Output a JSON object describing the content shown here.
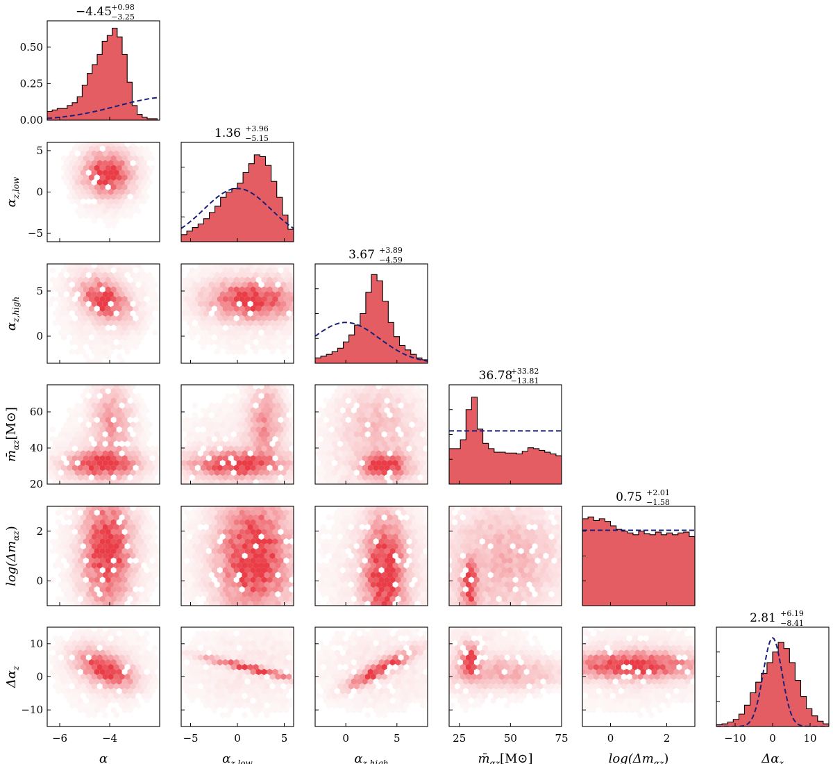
{
  "chart_data": {
    "type": "corner",
    "parameters": [
      {
        "id": "alpha",
        "label": "α",
        "sub": "",
        "range": [
          -6.5,
          -2.0
        ],
        "ticks": [
          -6,
          -4
        ],
        "hist_ticks": [
          0.0,
          0.25,
          0.5
        ],
        "hist_tick_labels": [
          "0.00",
          "0.25",
          "0.50"
        ],
        "hist_ymax": 0.68,
        "title_value": "−4.45",
        "title_plus": "+0.98",
        "title_minus": "−3.25"
      },
      {
        "id": "alpha_z_low",
        "label": "α",
        "sub": "z,low",
        "range": [
          -6.0,
          6.0
        ],
        "ticks": [
          -5,
          0,
          5
        ],
        "title_value": "1.36",
        "title_plus": "+3.96",
        "title_minus": "−5.15"
      },
      {
        "id": "alpha_z_high",
        "label": "α",
        "sub": "z,high",
        "range": [
          -3.0,
          8.0
        ],
        "ticks": [
          0,
          5
        ],
        "title_value": "3.67",
        "title_plus": "+3.89",
        "title_minus": "−4.59"
      },
      {
        "id": "m_alpha_z",
        "label": "m̄",
        "sub": "αz",
        "suffix": "[M⊙]",
        "range": [
          20,
          75
        ],
        "ticks": [
          25,
          50,
          75
        ],
        "y_ticks": [
          20,
          40,
          60
        ],
        "title_value": "36.78",
        "title_plus": "+33.82",
        "title_minus": "−13.81"
      },
      {
        "id": "log_dm_alpha_z",
        "label": "log(Δm",
        "sub": "αz",
        "suffix": ")",
        "range": [
          -1.0,
          3.0
        ],
        "ticks": [
          0,
          2
        ],
        "title_value": "0.75",
        "title_plus": "+2.01",
        "title_minus": "−1.58"
      },
      {
        "id": "delta_alpha_z",
        "label": "Δα",
        "sub": "z",
        "range": [
          -15,
          15
        ],
        "ticks": [
          -10,
          0,
          10
        ],
        "title_value": "2.81",
        "title_plus": "+6.19",
        "title_minus": "−8.41"
      }
    ],
    "histograms": [
      {
        "param": "alpha",
        "bin_start": -6.5,
        "bin_width": 0.2,
        "values": [
          0.06,
          0.07,
          0.08,
          0.08,
          0.1,
          0.12,
          0.16,
          0.24,
          0.32,
          0.38,
          0.45,
          0.54,
          0.58,
          0.63,
          0.57,
          0.45,
          0.26,
          0.1,
          0.04,
          0.02,
          0.01,
          0.01,
          0.0
        ],
        "prior": {
          "kind": "gauss",
          "mu": -1.5,
          "sigma": 2.2,
          "peak": 0.16
        }
      },
      {
        "param": "alpha_z_low",
        "bin_start": -6.0,
        "bin_width": 0.6,
        "values": [
          0.08,
          0.12,
          0.16,
          0.2,
          0.26,
          0.33,
          0.4,
          0.5,
          0.56,
          0.6,
          0.66,
          0.78,
          0.88,
          0.98,
          0.96,
          0.86,
          0.68,
          0.5,
          0.3,
          0.14
        ],
        "prior": {
          "kind": "gauss",
          "mu": 0.0,
          "sigma": 3.6,
          "peak": 0.6
        }
      },
      {
        "param": "alpha_z_high",
        "bin_start": -3.0,
        "bin_width": 0.55,
        "values": [
          0.06,
          0.08,
          0.1,
          0.13,
          0.17,
          0.24,
          0.32,
          0.43,
          0.56,
          0.8,
          1.0,
          0.93,
          0.7,
          0.46,
          0.3,
          0.2,
          0.15,
          0.1,
          0.06,
          0.04
        ],
        "prior": {
          "kind": "gauss",
          "mu": 0.0,
          "sigma": 3.3,
          "peak": 0.46
        }
      },
      {
        "param": "m_alpha_z",
        "bin_start": 20,
        "bin_width": 2.75,
        "values": [
          0.4,
          0.4,
          0.5,
          0.84,
          0.98,
          0.62,
          0.46,
          0.4,
          0.36,
          0.36,
          0.35,
          0.35,
          0.34,
          0.37,
          0.41,
          0.4,
          0.38,
          0.36,
          0.34,
          0.32
        ],
        "prior": {
          "kind": "flat",
          "level": 0.6
        }
      },
      {
        "param": "log_dm_alpha_z",
        "bin_start": -1.0,
        "bin_width": 0.2,
        "values": [
          0.98,
          1.0,
          0.96,
          0.98,
          0.95,
          0.9,
          0.86,
          0.84,
          0.82,
          0.8,
          0.84,
          0.81,
          0.8,
          0.83,
          0.8,
          0.82,
          0.8,
          0.82,
          0.83,
          0.78
        ],
        "prior": {
          "kind": "flat",
          "level": 0.85
        }
      },
      {
        "param": "delta_alpha_z",
        "bin_start": -15,
        "bin_width": 1.5,
        "values": [
          0.02,
          0.03,
          0.05,
          0.08,
          0.14,
          0.24,
          0.38,
          0.5,
          0.6,
          0.72,
          0.84,
          0.95,
          0.88,
          0.72,
          0.52,
          0.34,
          0.2,
          0.12,
          0.06,
          0.03
        ],
        "prior": {
          "kind": "gauss",
          "mu": 0.0,
          "sigma": 2.5,
          "peak": 1.0
        }
      }
    ],
    "pair_densities": {
      "type": "hexbin",
      "color": "#e8323c",
      "description_free": true,
      "pairs": [
        {
          "x": "alpha",
          "y": "alpha_z_low",
          "blobs": [
            [
              -4.1,
              2.2,
              0.6,
              1.6,
              0.0,
              1.0
            ]
          ],
          "spread": [
            0.7,
            2.5
          ]
        },
        {
          "x": "alpha",
          "y": "alpha_z_high",
          "blobs": [
            [
              -4.2,
              4.0,
              0.6,
              1.4,
              -0.4,
              1.0
            ]
          ],
          "spread": [
            0.9,
            2.8
          ]
        },
        {
          "x": "alpha_z_low",
          "y": "alpha_z_high",
          "blobs": [
            [
              1.5,
              4.0,
              2.8,
              1.3,
              0.0,
              1.0
            ]
          ],
          "spread": [
            3.5,
            2.5
          ]
        },
        {
          "x": "alpha",
          "y": "m_alpha_z",
          "blobs": [
            [
              -4.3,
              31,
              0.9,
              4.5,
              0.0,
              1.0
            ],
            [
              -3.9,
              55,
              0.5,
              14,
              0.0,
              0.45
            ]
          ],
          "spread": [
            0.9,
            15
          ]
        },
        {
          "x": "alpha_z_low",
          "y": "m_alpha_z",
          "blobs": [
            [
              0.0,
              31,
              3.2,
              4.5,
              0.0,
              1.0
            ],
            [
              3.0,
              55,
              1.2,
              14,
              0.0,
              0.5
            ]
          ],
          "spread": [
            3.5,
            15
          ]
        },
        {
          "x": "alpha_z_high",
          "y": "m_alpha_z",
          "blobs": [
            [
              3.8,
              30,
              1.4,
              4.5,
              0.0,
              1.0
            ],
            [
              3.0,
              55,
              2.5,
              15,
              0.0,
              0.25
            ]
          ],
          "spread": [
            3.0,
            15
          ]
        },
        {
          "x": "alpha",
          "y": "log_dm_alpha_z",
          "blobs": [
            [
              -4.1,
              1.2,
              0.6,
              1.4,
              0.0,
              1.0
            ]
          ],
          "spread": [
            0.9,
            1.4
          ]
        },
        {
          "x": "alpha_z_low",
          "y": "log_dm_alpha_z",
          "blobs": [
            [
              1.8,
              1.0,
              2.4,
              1.5,
              0.0,
              1.0
            ]
          ],
          "spread": [
            3.5,
            1.4
          ]
        },
        {
          "x": "alpha_z_high",
          "y": "log_dm_alpha_z",
          "blobs": [
            [
              3.8,
              0.3,
              1.3,
              1.5,
              0.0,
              1.0
            ]
          ],
          "spread": [
            3.0,
            1.4
          ]
        },
        {
          "x": "m_alpha_z",
          "y": "log_dm_alpha_z",
          "blobs": [
            [
              30,
              -0.2,
              2.5,
              0.6,
              0.0,
              1.0
            ],
            [
              50,
              1.0,
              18,
              1.5,
              0.0,
              0.3
            ]
          ],
          "spread": [
            15,
            1.4
          ]
        },
        {
          "x": "alpha",
          "y": "delta_alpha_z",
          "blobs": [
            [
              -4.2,
              2.5,
              0.7,
              3.5,
              -0.5,
              1.0
            ]
          ],
          "spread": [
            0.9,
            6
          ]
        },
        {
          "x": "alpha_z_low",
          "y": "delta_alpha_z",
          "blobs": [
            [
              1.5,
              2.5,
              3.2,
              2.2,
              -0.95,
              1.0
            ]
          ],
          "spread": [
            3.5,
            6
          ]
        },
        {
          "x": "alpha_z_high",
          "y": "delta_alpha_z",
          "blobs": [
            [
              3.5,
              2.5,
              2.0,
              3.5,
              0.9,
              1.0
            ]
          ],
          "spread": [
            3.0,
            6
          ]
        },
        {
          "x": "m_alpha_z",
          "y": "delta_alpha_z",
          "blobs": [
            [
              30,
              5,
              3,
              3,
              0.0,
              1.0
            ],
            [
              50,
              1,
              18,
              3,
              0.0,
              0.35
            ]
          ],
          "spread": [
            15,
            6
          ]
        },
        {
          "x": "log_dm_alpha_z",
          "y": "delta_alpha_z",
          "blobs": [
            [
              0.8,
              3.5,
              1.5,
              2.5,
              0.0,
              1.0
            ]
          ],
          "spread": [
            1.4,
            6
          ]
        }
      ]
    },
    "axis_labels": {
      "x": [
        "α",
        "αz,low",
        "αz,high",
        "m̄αz[M⊙]",
        "log(Δmαz)",
        "Δαz"
      ],
      "y": [
        "αz,low",
        "αz,high",
        "m̄αz[M⊙]",
        "log(Δmαz)",
        "Δαz"
      ]
    }
  }
}
